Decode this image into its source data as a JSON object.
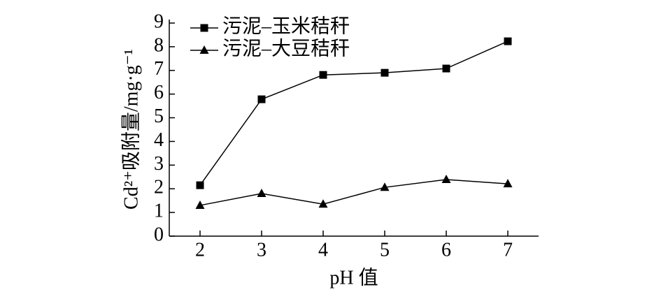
{
  "chart_data": {
    "type": "line",
    "x_label": "pH 值",
    "y_label": "Cd²⁺吸附量/mg·g⁻¹",
    "x": [
      2,
      3,
      4,
      5,
      6,
      7
    ],
    "series": [
      {
        "name": "污泥–玉米秸秆",
        "color": "#000000",
        "marker": "square",
        "values": [
          2.15,
          5.78,
          6.81,
          6.9,
          7.08,
          8.23
        ]
      },
      {
        "name": "污泥–大豆秸秆",
        "color": "#000000",
        "marker": "triangle",
        "values": [
          1.3,
          1.8,
          1.35,
          2.06,
          2.39,
          2.21
        ]
      }
    ],
    "xlim": [
      1.5,
      7.5
    ],
    "xticks": [
      2,
      3,
      4,
      5,
      6,
      7
    ],
    "ylim": [
      0,
      9
    ],
    "yticks": [
      0,
      1,
      2,
      3,
      4,
      5,
      6,
      7,
      8,
      9
    ],
    "legend": "upper left",
    "grid": false
  }
}
